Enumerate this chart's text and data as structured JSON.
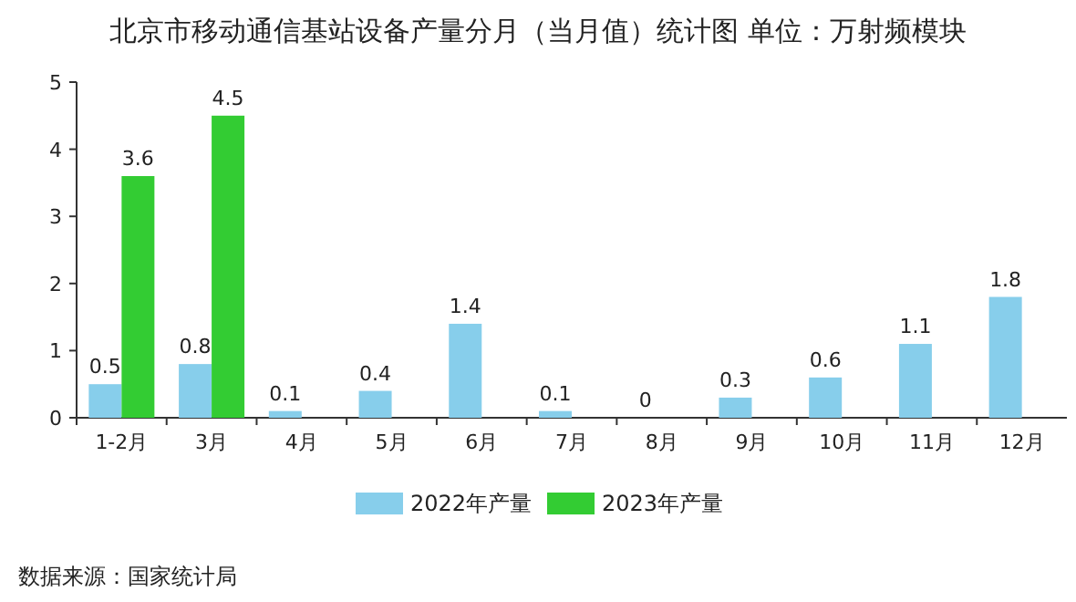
{
  "chart_data": {
    "type": "bar",
    "title": "北京市移动通信基站设备产量分月（当月值）统计图 单位：万射频模块",
    "categories": [
      "1-2月",
      "3月",
      "4月",
      "5月",
      "6月",
      "7月",
      "8月",
      "9月",
      "10月",
      "11月",
      "12月"
    ],
    "series": [
      {
        "name": "2022年产量",
        "color": "#87ceeb",
        "values": [
          0.5,
          0.8,
          0.1,
          0.4,
          1.4,
          0.1,
          0,
          0.3,
          0.6,
          1.1,
          1.8
        ]
      },
      {
        "name": "2023年产量",
        "color": "#33cc33",
        "values": [
          3.6,
          4.5,
          null,
          null,
          null,
          null,
          null,
          null,
          null,
          null,
          null
        ]
      }
    ],
    "ylim": [
      0,
      5
    ],
    "yticks": [
      0,
      1,
      2,
      3,
      4,
      5
    ],
    "grid": false,
    "legend": "bottom",
    "data_labels": true,
    "annotations": [
      "数据来源：国家统计局"
    ]
  }
}
